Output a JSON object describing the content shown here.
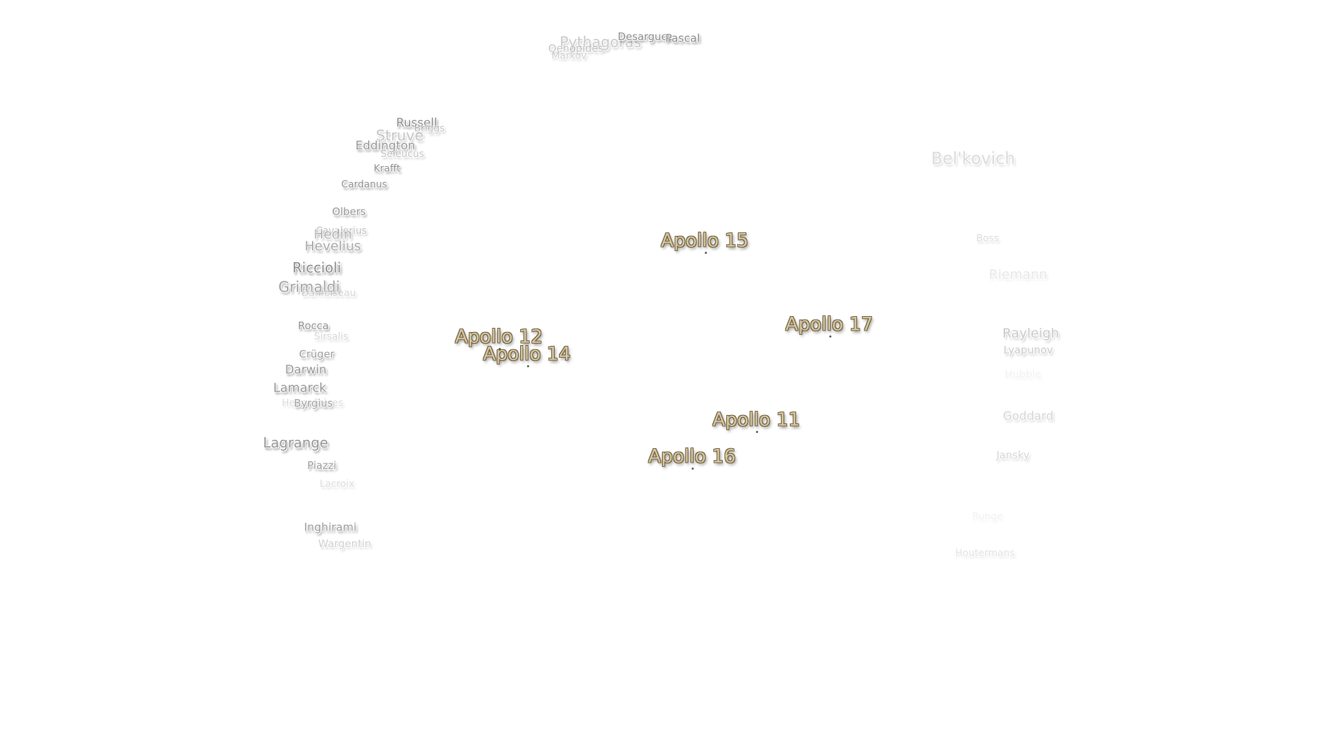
{
  "craters": [
    {
      "text": "Pythagoras"
    },
    {
      "text": "Oenopides"
    },
    {
      "text": "Markov"
    },
    {
      "text": "Desargues"
    },
    {
      "text": "Pascal"
    },
    {
      "text": "Russell"
    },
    {
      "text": "Briggs"
    },
    {
      "text": "Struve"
    },
    {
      "text": "Eddington"
    },
    {
      "text": "Seleucus"
    },
    {
      "text": "Krafft"
    },
    {
      "text": "Cardanus"
    },
    {
      "text": "Olbers"
    },
    {
      "text": "Cavalerius"
    },
    {
      "text": "Hedin"
    },
    {
      "text": "Hevelius"
    },
    {
      "text": "Riccioli"
    },
    {
      "text": "Grimaldi"
    },
    {
      "text": "Damoiseau"
    },
    {
      "text": "Rocca"
    },
    {
      "text": "Sirsalis"
    },
    {
      "text": "Crüger"
    },
    {
      "text": "Darwin"
    },
    {
      "text": "Lamarck"
    },
    {
      "text": "Henry Frères"
    },
    {
      "text": "Byrgius"
    },
    {
      "text": "Lagrange"
    },
    {
      "text": "Piazzi"
    },
    {
      "text": "Lacroix"
    },
    {
      "text": "Inghirami"
    },
    {
      "text": "Wargentin"
    },
    {
      "text": "Bel'kovich"
    },
    {
      "text": "Boss"
    },
    {
      "text": "Riemann"
    },
    {
      "text": "Rayleigh"
    },
    {
      "text": "Lyapunov"
    },
    {
      "text": "Hubble"
    },
    {
      "text": "Goddard"
    },
    {
      "text": "Jansky"
    },
    {
      "text": "Runge"
    },
    {
      "text": "Houtermans"
    }
  ],
  "sites": [
    {
      "text": "Apollo 15"
    },
    {
      "text": "Apollo 17"
    },
    {
      "text": "Apollo 12"
    },
    {
      "text": "Apollo 14"
    },
    {
      "text": "Apollo 11"
    },
    {
      "text": "Apollo 16"
    }
  ]
}
